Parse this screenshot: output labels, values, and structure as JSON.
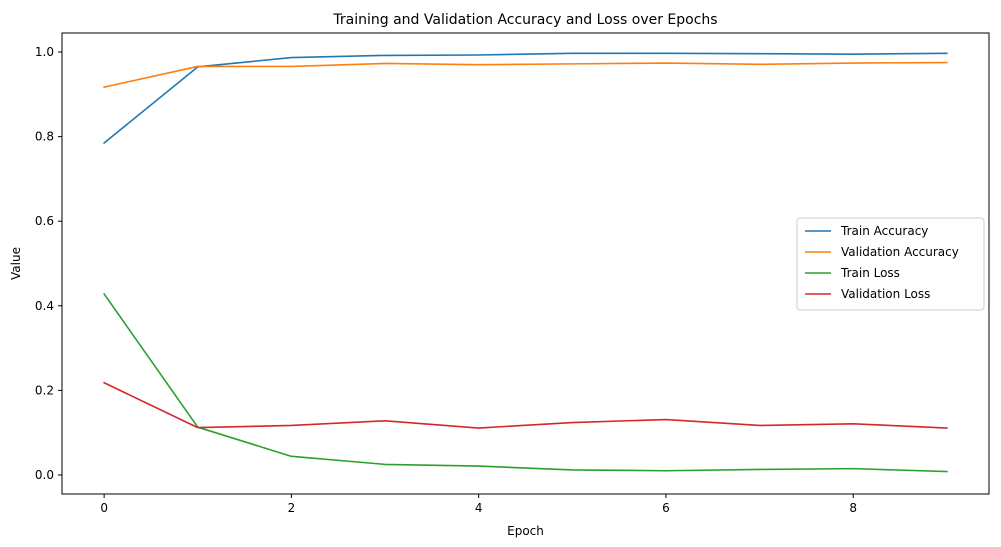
{
  "chart_data": {
    "type": "line",
    "title": "Training and Validation Accuracy and Loss over Epochs",
    "xlabel": "Epoch",
    "ylabel": "Value",
    "xlim": [
      -0.45,
      9.45
    ],
    "ylim": [
      -0.045,
      1.045
    ],
    "xticks": [
      0,
      2,
      4,
      6,
      8
    ],
    "yticks": [
      0.0,
      0.2,
      0.4,
      0.6,
      0.8,
      1.0
    ],
    "ytick_labels": [
      "0.0",
      "0.2",
      "0.4",
      "0.6",
      "0.8",
      "1.0"
    ],
    "grid": false,
    "legend_position": "center-right",
    "x": [
      0,
      1,
      2,
      3,
      4,
      5,
      6,
      7,
      8,
      9
    ],
    "series": [
      {
        "name": "Train Accuracy",
        "color": "#1f77b4",
        "values": [
          0.785,
          0.965,
          0.987,
          0.992,
          0.993,
          0.997,
          0.997,
          0.996,
          0.995,
          0.997
        ]
      },
      {
        "name": "Validation Accuracy",
        "color": "#ff7f0e",
        "values": [
          0.917,
          0.966,
          0.966,
          0.973,
          0.97,
          0.972,
          0.974,
          0.971,
          0.974,
          0.975
        ]
      },
      {
        "name": "Train Loss",
        "color": "#2ca02c",
        "values": [
          0.428,
          0.113,
          0.044,
          0.025,
          0.021,
          0.012,
          0.01,
          0.013,
          0.015,
          0.008
        ]
      },
      {
        "name": "Validation Loss",
        "color": "#d62728",
        "values": [
          0.218,
          0.112,
          0.117,
          0.128,
          0.111,
          0.124,
          0.131,
          0.117,
          0.121,
          0.111
        ]
      }
    ]
  }
}
